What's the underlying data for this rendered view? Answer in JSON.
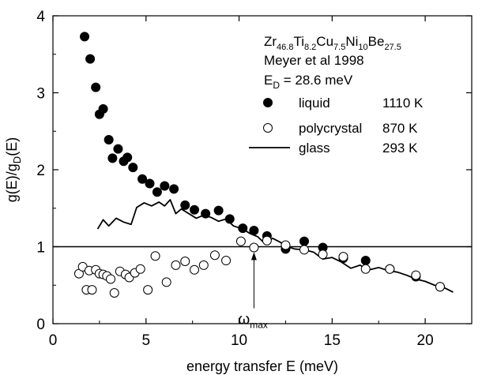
{
  "chart_data": {
    "type": "scatter",
    "xlabel": "energy transfer E (meV)",
    "ylabel": {
      "main": "g(E)/g",
      "sub": "D",
      "tail": "(E)"
    },
    "xlim": [
      0,
      22.5
    ],
    "ylim": [
      0,
      4
    ],
    "xticks": [
      0,
      5,
      10,
      15,
      20
    ],
    "yticks": [
      0,
      1,
      2,
      3,
      4
    ],
    "reference_line": {
      "y": 1
    },
    "annotation": {
      "text": "ω",
      "sub": "max",
      "x": 10.8,
      "arrow_from_y": 0.2,
      "arrow_to_y": 0.93
    },
    "title_block": {
      "formula": [
        {
          "t": "Zr",
          "sub": false
        },
        {
          "t": "46.8",
          "sub": true
        },
        {
          "t": "Ti",
          "sub": false
        },
        {
          "t": "8.2",
          "sub": true
        },
        {
          "t": "Cu",
          "sub": false
        },
        {
          "t": "7.5",
          "sub": true
        },
        {
          "t": "Ni",
          "sub": false
        },
        {
          "t": "10",
          "sub": true
        },
        {
          "t": "Be",
          "sub": false
        },
        {
          "t": "27.5",
          "sub": true
        }
      ],
      "reference": "Meyer et al 1998",
      "debye": {
        "main": "E",
        "sub": "D",
        "tail": " = 28.6 meV"
      }
    },
    "series": [
      {
        "name": "liquid",
        "temp": "1110 K",
        "style": "filled",
        "x": [
          1.7,
          2.0,
          2.3,
          2.5,
          2.7,
          3.0,
          3.2,
          3.5,
          3.8,
          4.0,
          4.3,
          4.8,
          5.2,
          5.6,
          6.0,
          6.5,
          7.1,
          7.6,
          8.2,
          8.9,
          9.5,
          10.2,
          10.8,
          11.5,
          12.5,
          13.5,
          14.5,
          15.6,
          16.8,
          18.1,
          19.5,
          20.8
        ],
        "y": [
          3.73,
          3.44,
          3.07,
          2.72,
          2.79,
          2.39,
          2.15,
          2.27,
          2.11,
          2.16,
          2.03,
          1.88,
          1.82,
          1.71,
          1.79,
          1.75,
          1.54,
          1.48,
          1.43,
          1.47,
          1.36,
          1.24,
          1.21,
          1.14,
          0.97,
          1.07,
          0.99,
          0.85,
          0.82,
          0.71,
          0.61,
          0.48
        ]
      },
      {
        "name": "polycrystal",
        "temp": "870 K",
        "style": "open",
        "x": [
          1.4,
          1.6,
          1.8,
          1.95,
          2.1,
          2.3,
          2.5,
          2.7,
          2.9,
          3.1,
          3.3,
          3.6,
          3.9,
          4.1,
          4.4,
          4.7,
          5.1,
          5.5,
          6.1,
          6.6,
          7.1,
          7.6,
          8.1,
          8.7,
          9.3,
          10.1,
          10.8,
          11.5,
          12.5,
          13.5,
          14.5,
          15.6,
          16.8,
          18.1,
          19.5,
          20.8
        ],
        "y": [
          0.65,
          0.74,
          0.44,
          0.69,
          0.44,
          0.7,
          0.65,
          0.64,
          0.62,
          0.58,
          0.4,
          0.68,
          0.64,
          0.6,
          0.66,
          0.71,
          0.44,
          0.88,
          0.54,
          0.76,
          0.81,
          0.7,
          0.76,
          0.89,
          0.82,
          1.07,
          0.99,
          1.08,
          1.02,
          0.96,
          0.9,
          0.87,
          0.71,
          0.71,
          0.63,
          0.48
        ]
      },
      {
        "name": "glass",
        "temp": "293 K",
        "style": "line",
        "x": [
          2.4,
          2.7,
          3.0,
          3.4,
          3.8,
          4.2,
          4.5,
          4.9,
          5.3,
          5.7,
          6.0,
          6.3,
          6.6,
          6.9,
          7.3,
          7.7,
          8.1,
          8.5,
          8.9,
          9.3,
          9.7,
          10.2,
          10.6,
          11.0,
          11.4,
          11.8,
          12.2,
          12.6,
          13.0,
          13.5,
          14.0,
          14.5,
          15.0,
          15.5,
          16.0,
          16.5,
          17.0,
          17.5,
          18.0,
          18.5,
          19.0,
          19.5,
          20.0,
          20.5,
          21.0,
          21.5
        ],
        "y": [
          1.23,
          1.35,
          1.27,
          1.37,
          1.32,
          1.29,
          1.51,
          1.57,
          1.53,
          1.58,
          1.53,
          1.61,
          1.43,
          1.49,
          1.43,
          1.37,
          1.41,
          1.38,
          1.33,
          1.36,
          1.27,
          1.23,
          1.17,
          1.13,
          1.04,
          1.11,
          1.06,
          1.0,
          0.97,
          0.96,
          0.93,
          0.84,
          0.86,
          0.8,
          0.72,
          0.76,
          0.7,
          0.73,
          0.69,
          0.67,
          0.63,
          0.58,
          0.55,
          0.5,
          0.47,
          0.41
        ]
      }
    ]
  }
}
